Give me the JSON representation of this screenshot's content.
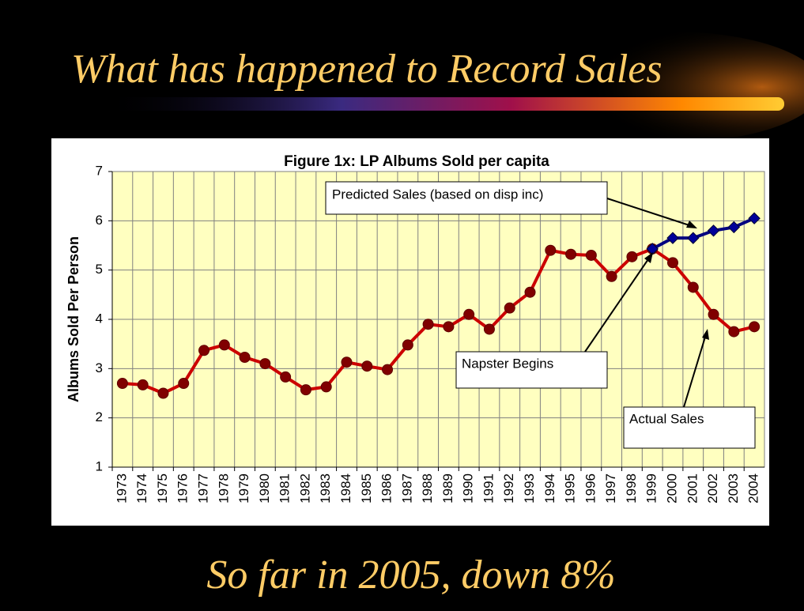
{
  "slide_title": "What has happened to Record Sales",
  "footer": "So far in 2005, down 8%",
  "chart_data": {
    "type": "line",
    "title": "Figure 1x: LP Albums Sold per capita",
    "y_label": "Albums Sold Per Person",
    "categories": [
      "1973",
      "1974",
      "1975",
      "1976",
      "1977",
      "1978",
      "1979",
      "1980",
      "1981",
      "1982",
      "1983",
      "1984",
      "1985",
      "1986",
      "1987",
      "1988",
      "1989",
      "1990",
      "1991",
      "1992",
      "1993",
      "1994",
      "1995",
      "1996",
      "1997",
      "1998",
      "1999",
      "2000",
      "2001",
      "2002",
      "2003",
      "2004"
    ],
    "series": [
      {
        "color": "#cc0000",
        "marker_color": "#800000",
        "marker": "circle",
        "values": [
          2.7,
          2.67,
          2.5,
          2.7,
          3.37,
          3.48,
          3.23,
          3.1,
          2.83,
          2.57,
          2.63,
          3.13,
          3.05,
          2.98,
          3.48,
          3.9,
          3.85,
          4.1,
          3.8,
          4.23,
          4.55,
          5.4,
          5.32,
          5.3,
          4.87,
          5.27,
          5.43,
          5.15,
          4.65,
          4.1,
          3.75,
          3.85
        ]
      },
      {
        "color": "#000080",
        "marker_color": "#000099",
        "marker": "diamond",
        "values": [
          null,
          null,
          null,
          null,
          null,
          null,
          null,
          null,
          null,
          null,
          null,
          null,
          null,
          null,
          null,
          null,
          null,
          null,
          null,
          null,
          null,
          null,
          null,
          null,
          null,
          null,
          5.43,
          5.65,
          5.65,
          5.8,
          5.87,
          6.05
        ]
      }
    ],
    "ylim": [
      1,
      7
    ],
    "yticks": [
      1,
      2,
      3,
      4,
      5,
      6,
      7
    ],
    "grid": true,
    "annotations": [
      "Predicted Sales (based on disp inc)",
      "Napster Begins",
      "Actual Sales"
    ]
  }
}
